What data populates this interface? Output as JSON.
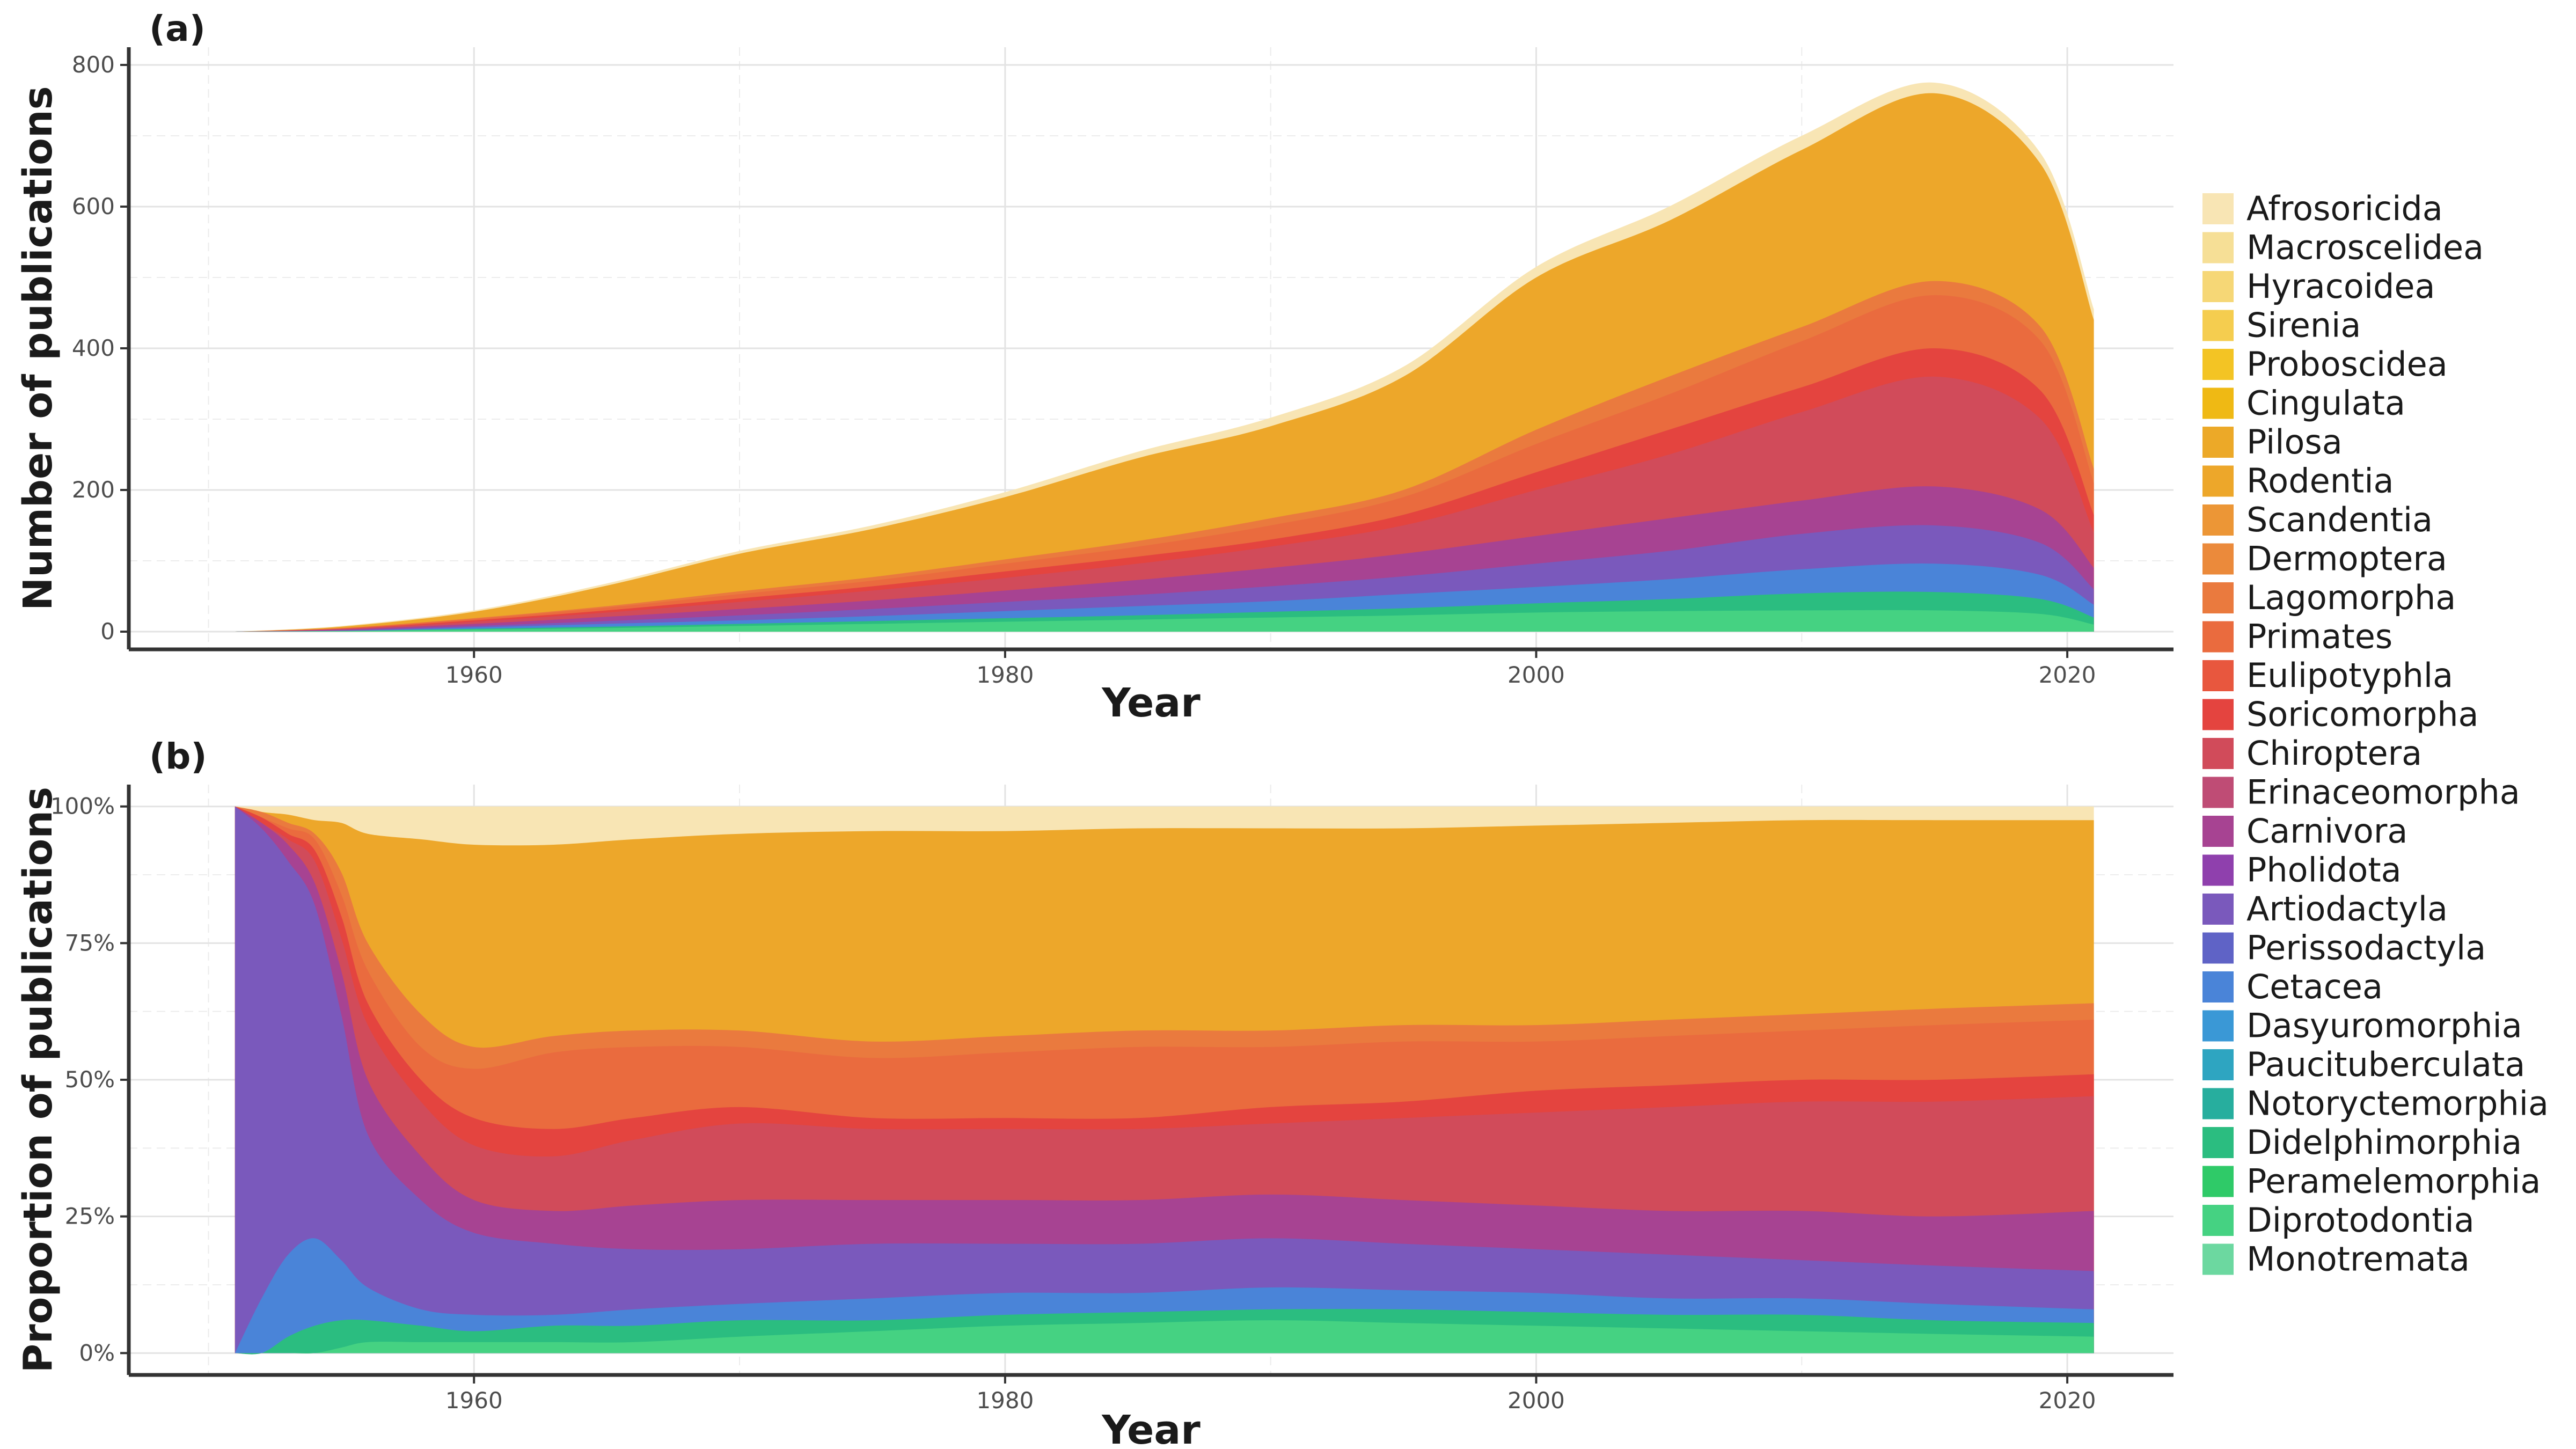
{
  "colors": {
    "Afrosoricida": "#f8e5b4",
    "Macroscelidea": "#f6df96",
    "Hyracoidea": "#f6d776",
    "Sirenia": "#f5cd4f",
    "Proboscidea": "#f3c424",
    "Cingulata": "#efb914",
    "Pilosa": "#eca928",
    "Rodentia": "#eda72a",
    "Scandentia": "#ec9636",
    "Dermoptera": "#eb8a3b",
    "Lagomorpha": "#ea7a3e",
    "Primates": "#ea6b3e",
    "Eulipotyphla": "#e8573e",
    "Soricomorpha": "#e4443f",
    "Chiroptera": "#d14b5a",
    "Erinaceomorpha": "#bf4c75",
    "Carnivora": "#a74392",
    "Pholidota": "#8f40ad",
    "Artiodactyla": "#7a59bc",
    "Perissodactyla": "#5f63c6",
    "Cetacea": "#4a84d8",
    "Dasyuromorphia": "#3a98d6",
    "Paucituberculata": "#2ea5c1",
    "Notoryctemorphia": "#27ae9e",
    "Didelphimorphia": "#2bbd80",
    "Peramelemorphia": "#2fca68",
    "Diprotodontia": "#45d282",
    "Monotremata": "#6cd8a0"
  },
  "legend": {
    "items": [
      "Afrosoricida",
      "Macroscelidea",
      "Hyracoidea",
      "Sirenia",
      "Proboscidea",
      "Cingulata",
      "Pilosa",
      "Rodentia",
      "Scandentia",
      "Dermoptera",
      "Lagomorpha",
      "Primates",
      "Eulipotyphla",
      "Soricomorpha",
      "Chiroptera",
      "Erinaceomorpha",
      "Carnivora",
      "Pholidota",
      "Artiodactyla",
      "Perissodactyla",
      "Cetacea",
      "Dasyuromorphia",
      "Paucituberculata",
      "Notoryctemorphia",
      "Didelphimorphia",
      "Peramelemorphia",
      "Diprotodontia",
      "Monotremata"
    ]
  },
  "chart_data": [
    {
      "type": "area",
      "panel_label": "(a)",
      "xlabel": "Year",
      "ylabel": "Number of publications",
      "xlim": [
        1947,
        2024
      ],
      "ylim": [
        -25,
        825
      ],
      "x_ticks": [
        1960,
        1980,
        2000,
        2020
      ],
      "y_ticks": [
        0,
        200,
        400,
        600,
        800
      ],
      "grid": true,
      "legend_position": "right",
      "x": [
        1951,
        1955,
        1960,
        1965,
        1970,
        1975,
        1980,
        1985,
        1990,
        1995,
        2000,
        2005,
        2010,
        2015,
        2019,
        2021
      ],
      "cumulative": [
        {
          "name": "Diprotodontia",
          "values": [
            0,
            1,
            3,
            5,
            8,
            11,
            14,
            17,
            20,
            23,
            27,
            29,
            30,
            30,
            25,
            10
          ]
        },
        {
          "name": "Didelphimorphia",
          "values": [
            0,
            1,
            4,
            7,
            11,
            15,
            19,
            23,
            28,
            33,
            40,
            46,
            54,
            56,
            46,
            20
          ]
        },
        {
          "name": "Cetacea",
          "values": [
            0,
            1,
            6,
            11,
            16,
            22,
            29,
            36,
            43,
            53,
            63,
            74,
            88,
            96,
            80,
            38
          ]
        },
        {
          "name": "Artiodactyla",
          "values": [
            0,
            2,
            8,
            15,
            23,
            32,
            42,
            52,
            64,
            78,
            96,
            114,
            138,
            150,
            125,
            60
          ]
        },
        {
          "name": "Carnivora",
          "values": [
            0,
            3,
            11,
            21,
            32,
            44,
            58,
            73,
            90,
            110,
            135,
            160,
            185,
            205,
            172,
            90
          ]
        },
        {
          "name": "Chiroptera",
          "values": [
            0,
            4,
            14,
            27,
            42,
            58,
            76,
            96,
            120,
            150,
            200,
            250,
            310,
            360,
            300,
            140
          ]
        },
        {
          "name": "Soricomorpha",
          "values": [
            0,
            4,
            16,
            30,
            47,
            64,
            85,
            106,
            130,
            165,
            225,
            285,
            345,
            400,
            340,
            165
          ]
        },
        {
          "name": "Primates",
          "values": [
            0,
            5,
            18,
            34,
            53,
            72,
            96,
            120,
            150,
            190,
            265,
            335,
            410,
            475,
            410,
            210
          ]
        },
        {
          "name": "Lagomorpha",
          "values": [
            0,
            5,
            19,
            36,
            57,
            77,
            102,
            128,
            160,
            200,
            285,
            360,
            430,
            495,
            430,
            230
          ]
        },
        {
          "name": "Rodentia",
          "values": [
            0,
            7,
            28,
            65,
            110,
            145,
            190,
            245,
            290,
            360,
            500,
            580,
            680,
            760,
            660,
            440
          ]
        },
        {
          "name": "Afrosoricida",
          "values": [
            0,
            8,
            30,
            68,
            114,
            150,
            197,
            254,
            302,
            374,
            515,
            600,
            700,
            775,
            675,
            455
          ]
        }
      ]
    },
    {
      "type": "area",
      "panel_label": "(b)",
      "xlabel": "Year",
      "ylabel": "Proportion of publications",
      "xlim": [
        1947,
        2024
      ],
      "ylim": [
        -0.04,
        1.04
      ],
      "x_ticks": [
        1960,
        1980,
        2000,
        2020
      ],
      "y_ticks": [
        0,
        0.25,
        0.5,
        0.75,
        1.0
      ],
      "y_tick_labels": [
        "0%",
        "25%",
        "50%",
        "75%",
        "100%"
      ],
      "grid": true,
      "legend_position": "right",
      "x": [
        1951,
        1952,
        1953,
        1954,
        1955,
        1956,
        1958,
        1960,
        1963,
        1966,
        1970,
        1975,
        1980,
        1985,
        1990,
        1995,
        2000,
        2005,
        2010,
        2015,
        2021
      ],
      "cumulative": [
        {
          "name": "Diprotodontia",
          "values": [
            0,
            0,
            0,
            0,
            0.01,
            0.02,
            0.02,
            0.02,
            0.02,
            0.02,
            0.03,
            0.04,
            0.05,
            0.055,
            0.06,
            0.055,
            0.05,
            0.045,
            0.04,
            0.035,
            0.03
          ]
        },
        {
          "name": "Didelphimorphia",
          "values": [
            0,
            0,
            0.03,
            0.05,
            0.06,
            0.06,
            0.05,
            0.04,
            0.05,
            0.05,
            0.06,
            0.06,
            0.07,
            0.075,
            0.08,
            0.08,
            0.075,
            0.07,
            0.07,
            0.06,
            0.055
          ]
        },
        {
          "name": "Cetacea",
          "values": [
            0,
            0.1,
            0.18,
            0.21,
            0.17,
            0.12,
            0.08,
            0.07,
            0.07,
            0.08,
            0.09,
            0.1,
            0.11,
            0.11,
            0.12,
            0.115,
            0.11,
            0.1,
            0.1,
            0.09,
            0.08
          ]
        },
        {
          "name": "Artiodactyla",
          "values": [
            1.0,
            0.96,
            0.9,
            0.82,
            0.62,
            0.4,
            0.28,
            0.22,
            0.2,
            0.19,
            0.19,
            0.2,
            0.2,
            0.2,
            0.21,
            0.2,
            0.19,
            0.18,
            0.17,
            0.16,
            0.15
          ]
        },
        {
          "name": "Carnivora",
          "values": [
            1.0,
            0.97,
            0.93,
            0.86,
            0.7,
            0.5,
            0.36,
            0.28,
            0.26,
            0.27,
            0.28,
            0.28,
            0.28,
            0.28,
            0.29,
            0.28,
            0.27,
            0.26,
            0.26,
            0.25,
            0.26
          ]
        },
        {
          "name": "Chiroptera",
          "values": [
            1.0,
            0.97,
            0.94,
            0.9,
            0.76,
            0.6,
            0.46,
            0.38,
            0.36,
            0.39,
            0.42,
            0.41,
            0.41,
            0.41,
            0.42,
            0.43,
            0.44,
            0.45,
            0.46,
            0.46,
            0.47
          ]
        },
        {
          "name": "Soricomorpha",
          "values": [
            1.0,
            0.98,
            0.95,
            0.92,
            0.8,
            0.64,
            0.5,
            0.43,
            0.41,
            0.43,
            0.45,
            0.43,
            0.43,
            0.43,
            0.45,
            0.46,
            0.48,
            0.49,
            0.5,
            0.5,
            0.51
          ]
        },
        {
          "name": "Primates",
          "values": [
            1.0,
            0.98,
            0.96,
            0.94,
            0.84,
            0.7,
            0.56,
            0.52,
            0.55,
            0.56,
            0.56,
            0.54,
            0.55,
            0.56,
            0.56,
            0.57,
            0.57,
            0.58,
            0.59,
            0.6,
            0.61
          ]
        },
        {
          "name": "Lagomorpha",
          "values": [
            1.0,
            0.99,
            0.97,
            0.95,
            0.88,
            0.75,
            0.62,
            0.56,
            0.58,
            0.59,
            0.59,
            0.57,
            0.58,
            0.59,
            0.59,
            0.6,
            0.6,
            0.61,
            0.62,
            0.63,
            0.64
          ]
        },
        {
          "name": "Rodentia",
          "values": [
            1.0,
            0.99,
            0.985,
            0.975,
            0.97,
            0.95,
            0.94,
            0.93,
            0.93,
            0.94,
            0.95,
            0.955,
            0.955,
            0.96,
            0.96,
            0.96,
            0.965,
            0.97,
            0.975,
            0.975,
            0.975
          ]
        },
        {
          "name": "Afrosoricida",
          "values": [
            1.0,
            1.0,
            1.0,
            1.0,
            1.0,
            1.0,
            1.0,
            1.0,
            1.0,
            1.0,
            1.0,
            1.0,
            1.0,
            1.0,
            1.0,
            1.0,
            1.0,
            1.0,
            1.0,
            1.0,
            1.0
          ]
        }
      ]
    }
  ]
}
